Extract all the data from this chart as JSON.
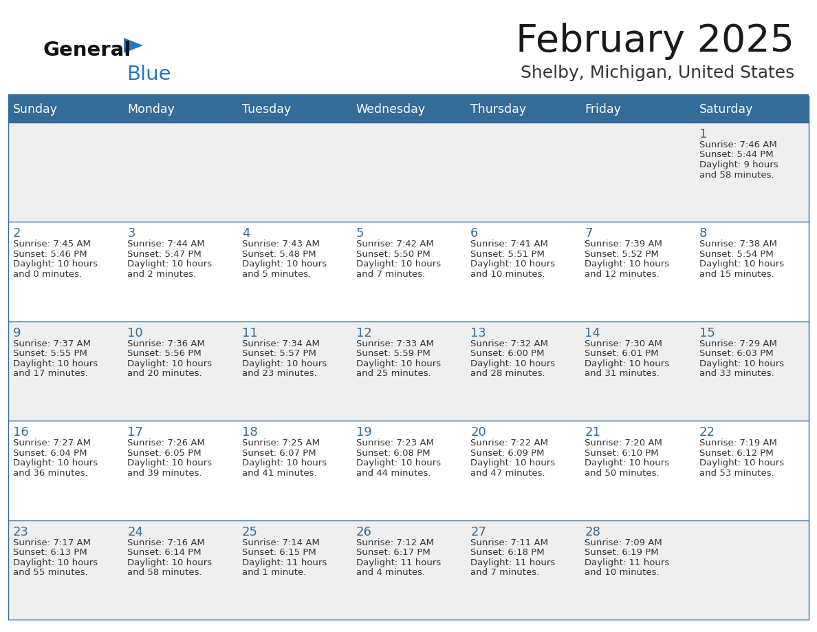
{
  "title": "February 2025",
  "subtitle": "Shelby, Michigan, United States",
  "header_bg": "#336B99",
  "header_text_color": "#FFFFFF",
  "cell_bg_odd": "#EFEFEF",
  "cell_bg_even": "#FFFFFF",
  "border_color": "#336B99",
  "days_of_week": [
    "Sunday",
    "Monday",
    "Tuesday",
    "Wednesday",
    "Thursday",
    "Friday",
    "Saturday"
  ],
  "title_color": "#1a1a1a",
  "subtitle_color": "#333333",
  "day_num_color": "#336B99",
  "cell_text_color": "#333333",
  "logo_general_color": "#111111",
  "logo_blue_color": "#2277CC",
  "logo_triangle_color": "#2277CC",
  "calendar": [
    [
      null,
      null,
      null,
      null,
      null,
      null,
      {
        "day": 1,
        "sunrise": "7:46 AM",
        "sunset": "5:44 PM",
        "daylight": "9 hours",
        "daylight2": "and 58 minutes."
      }
    ],
    [
      {
        "day": 2,
        "sunrise": "7:45 AM",
        "sunset": "5:46 PM",
        "daylight": "10 hours",
        "daylight2": "and 0 minutes."
      },
      {
        "day": 3,
        "sunrise": "7:44 AM",
        "sunset": "5:47 PM",
        "daylight": "10 hours",
        "daylight2": "and 2 minutes."
      },
      {
        "day": 4,
        "sunrise": "7:43 AM",
        "sunset": "5:48 PM",
        "daylight": "10 hours",
        "daylight2": "and 5 minutes."
      },
      {
        "day": 5,
        "sunrise": "7:42 AM",
        "sunset": "5:50 PM",
        "daylight": "10 hours",
        "daylight2": "and 7 minutes."
      },
      {
        "day": 6,
        "sunrise": "7:41 AM",
        "sunset": "5:51 PM",
        "daylight": "10 hours",
        "daylight2": "and 10 minutes."
      },
      {
        "day": 7,
        "sunrise": "7:39 AM",
        "sunset": "5:52 PM",
        "daylight": "10 hours",
        "daylight2": "and 12 minutes."
      },
      {
        "day": 8,
        "sunrise": "7:38 AM",
        "sunset": "5:54 PM",
        "daylight": "10 hours",
        "daylight2": "and 15 minutes."
      }
    ],
    [
      {
        "day": 9,
        "sunrise": "7:37 AM",
        "sunset": "5:55 PM",
        "daylight": "10 hours",
        "daylight2": "and 17 minutes."
      },
      {
        "day": 10,
        "sunrise": "7:36 AM",
        "sunset": "5:56 PM",
        "daylight": "10 hours",
        "daylight2": "and 20 minutes."
      },
      {
        "day": 11,
        "sunrise": "7:34 AM",
        "sunset": "5:57 PM",
        "daylight": "10 hours",
        "daylight2": "and 23 minutes."
      },
      {
        "day": 12,
        "sunrise": "7:33 AM",
        "sunset": "5:59 PM",
        "daylight": "10 hours",
        "daylight2": "and 25 minutes."
      },
      {
        "day": 13,
        "sunrise": "7:32 AM",
        "sunset": "6:00 PM",
        "daylight": "10 hours",
        "daylight2": "and 28 minutes."
      },
      {
        "day": 14,
        "sunrise": "7:30 AM",
        "sunset": "6:01 PM",
        "daylight": "10 hours",
        "daylight2": "and 31 minutes."
      },
      {
        "day": 15,
        "sunrise": "7:29 AM",
        "sunset": "6:03 PM",
        "daylight": "10 hours",
        "daylight2": "and 33 minutes."
      }
    ],
    [
      {
        "day": 16,
        "sunrise": "7:27 AM",
        "sunset": "6:04 PM",
        "daylight": "10 hours",
        "daylight2": "and 36 minutes."
      },
      {
        "day": 17,
        "sunrise": "7:26 AM",
        "sunset": "6:05 PM",
        "daylight": "10 hours",
        "daylight2": "and 39 minutes."
      },
      {
        "day": 18,
        "sunrise": "7:25 AM",
        "sunset": "6:07 PM",
        "daylight": "10 hours",
        "daylight2": "and 41 minutes."
      },
      {
        "day": 19,
        "sunrise": "7:23 AM",
        "sunset": "6:08 PM",
        "daylight": "10 hours",
        "daylight2": "and 44 minutes."
      },
      {
        "day": 20,
        "sunrise": "7:22 AM",
        "sunset": "6:09 PM",
        "daylight": "10 hours",
        "daylight2": "and 47 minutes."
      },
      {
        "day": 21,
        "sunrise": "7:20 AM",
        "sunset": "6:10 PM",
        "daylight": "10 hours",
        "daylight2": "and 50 minutes."
      },
      {
        "day": 22,
        "sunrise": "7:19 AM",
        "sunset": "6:12 PM",
        "daylight": "10 hours",
        "daylight2": "and 53 minutes."
      }
    ],
    [
      {
        "day": 23,
        "sunrise": "7:17 AM",
        "sunset": "6:13 PM",
        "daylight": "10 hours",
        "daylight2": "and 55 minutes."
      },
      {
        "day": 24,
        "sunrise": "7:16 AM",
        "sunset": "6:14 PM",
        "daylight": "10 hours",
        "daylight2": "and 58 minutes."
      },
      {
        "day": 25,
        "sunrise": "7:14 AM",
        "sunset": "6:15 PM",
        "daylight": "11 hours",
        "daylight2": "and 1 minute."
      },
      {
        "day": 26,
        "sunrise": "7:12 AM",
        "sunset": "6:17 PM",
        "daylight": "11 hours",
        "daylight2": "and 4 minutes."
      },
      {
        "day": 27,
        "sunrise": "7:11 AM",
        "sunset": "6:18 PM",
        "daylight": "11 hours",
        "daylight2": "and 7 minutes."
      },
      {
        "day": 28,
        "sunrise": "7:09 AM",
        "sunset": "6:19 PM",
        "daylight": "11 hours",
        "daylight2": "and 10 minutes."
      },
      null
    ]
  ]
}
